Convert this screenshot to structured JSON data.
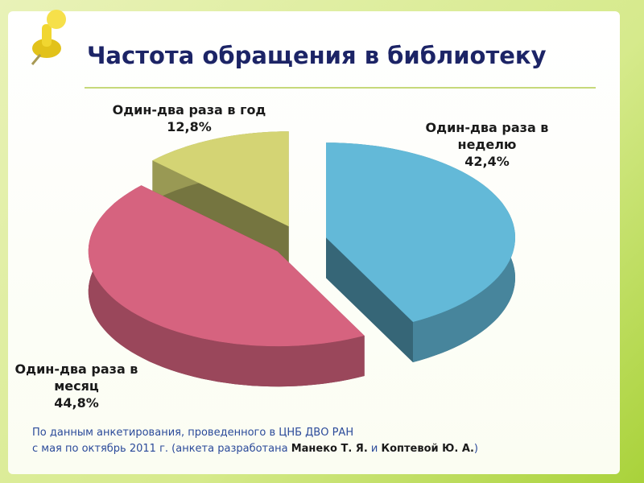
{
  "chart_data": {
    "type": "pie",
    "title": "Частота обращения в библиотеку",
    "categories": [
      "Один-два раза в неделю",
      "Один-два раза в месяц",
      "Один-два раза в год"
    ],
    "values": [
      42.4,
      44.8,
      12.8
    ],
    "value_labels": [
      "42,4%",
      "44,8%",
      "12,8%"
    ],
    "colors": [
      "#63b9d8",
      "#d6637f",
      "#d4d474"
    ]
  },
  "footnote": [
    [
      "По данным анкетирования, проведенного в ЦНБ ДВО РАН"
    ],
    [
      "с мая по октябрь 2011 г. (анкета разработана ",
      "Манеко Т. Я.",
      " и ",
      "Коптевой Ю. А.",
      ")"
    ]
  ]
}
